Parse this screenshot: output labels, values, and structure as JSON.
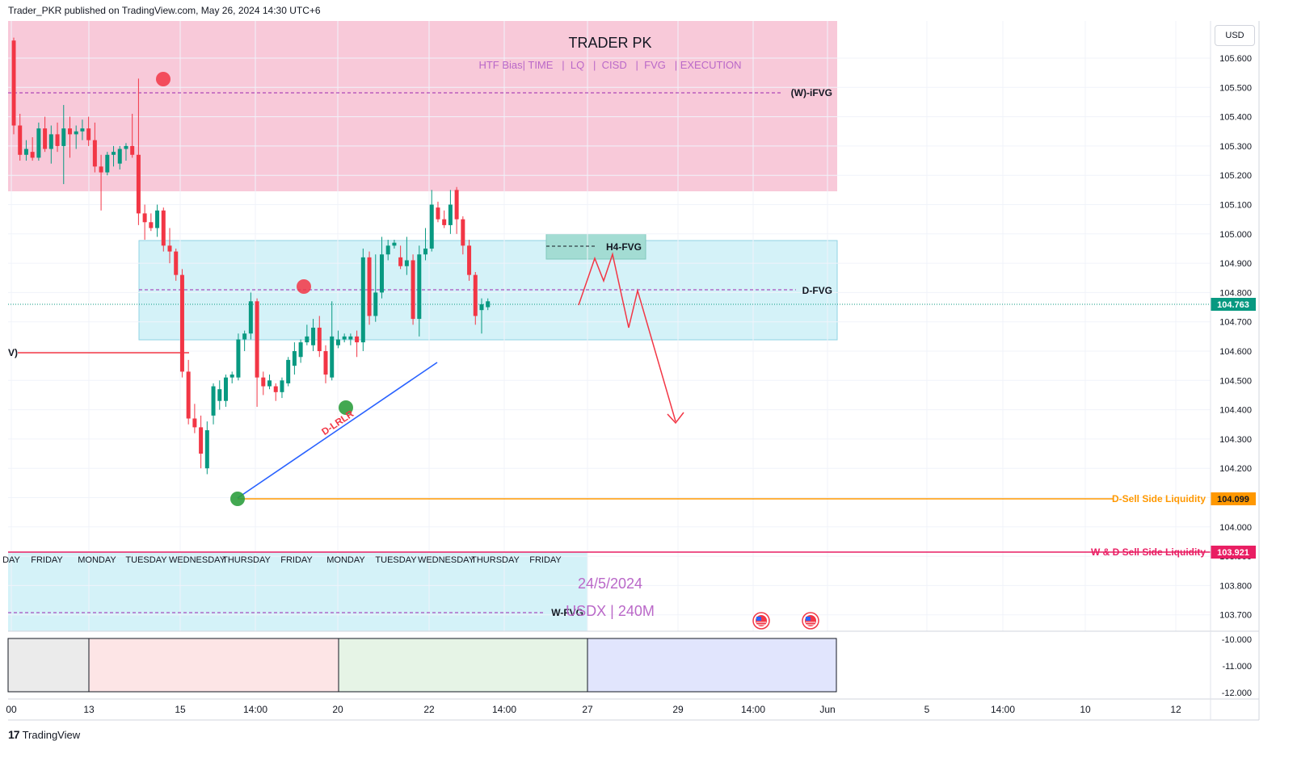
{
  "header": {
    "publisher": "Trader_PKR published on TradingView.com, May 26, 2024 14:30 UTC+6"
  },
  "footer": {
    "logo": "17",
    "brand": "TradingView"
  },
  "toolbar": {
    "currency": "USD"
  },
  "colors": {
    "up": "#089981",
    "down": "#f23645",
    "wick": "#131722",
    "pink_zone": "#f8c5d6",
    "cyan_zone": "#d2f1f7",
    "h4_zone": "#9ed9d0",
    "orange_line": "#ff9800",
    "magenta_line": "#e91e63",
    "blue_line": "#2962ff",
    "red_path": "#f23645"
  },
  "annotations": {
    "title": "TRADER PK",
    "subtitle": "HTF Bias| TIME   |  LQ   |  CISD   |  FVG   | EXECUTION",
    "w_ifvg": "(W)-iFVG",
    "d_fvg": "D-FVG",
    "h4_fvg": "H4-FVG",
    "d_lrlr": "D-LRLR",
    "w_fvg": "W-FVG",
    "left_cut": "V)",
    "date": "24/5/2024",
    "symbol": "USDX | 240M",
    "d_ssl": "D-Sell Side Liquidity",
    "wd_ssl": "W & D Sell Side Liquidity"
  },
  "days_strip": [
    "DAY",
    "FRIDAY",
    "MONDAY",
    "TUESDAY",
    "WEDNESDAY",
    "THURSDAY",
    "FRIDAY",
    "MONDAY",
    "TUESDAY",
    "WEDNESDAY",
    "THURSDAY",
    "FRIDAY"
  ],
  "chart_data": {
    "type": "candlestick",
    "symbol": "USDX",
    "timeframe": "240M",
    "y_ticks": [
      "105.600",
      "105.500",
      "105.400",
      "105.300",
      "105.200",
      "105.100",
      "105.000",
      "104.900",
      "104.800",
      "104.700",
      "104.600",
      "104.500",
      "104.400",
      "104.300",
      "104.200",
      "104.100",
      "104.000",
      "103.900",
      "103.800",
      "103.700"
    ],
    "oscillator_ticks": [
      "-10.000",
      "-11.000",
      "-12.000"
    ],
    "x_ticks": [
      "00",
      "13",
      "15",
      "14:00",
      "20",
      "22",
      "14:00",
      "27",
      "29",
      "14:00",
      "Jun",
      "5",
      "14:00",
      "10",
      "12"
    ],
    "ylim": [
      103.63,
      105.67
    ],
    "price_labels": {
      "current": "104.763",
      "d_ssl": "104.099",
      "wd_ssl": "103.921"
    },
    "levels": {
      "w_ifvg": 105.48,
      "d_fvg": 104.81,
      "d_ssl": 104.099,
      "wd_ssl": 103.921,
      "current": 104.763,
      "left_red": 104.6
    },
    "candles": [
      {
        "o": 105.66,
        "h": 105.67,
        "l": 105.34,
        "c": 105.37
      },
      {
        "o": 105.37,
        "h": 105.41,
        "l": 105.25,
        "c": 105.27
      },
      {
        "o": 105.27,
        "h": 105.32,
        "l": 105.25,
        "c": 105.29
      },
      {
        "o": 105.28,
        "h": 105.33,
        "l": 105.25,
        "c": 105.26
      },
      {
        "o": 105.26,
        "h": 105.38,
        "l": 105.25,
        "c": 105.36
      },
      {
        "o": 105.36,
        "h": 105.4,
        "l": 105.28,
        "c": 105.29
      },
      {
        "o": 105.29,
        "h": 105.37,
        "l": 105.24,
        "c": 105.34
      },
      {
        "o": 105.34,
        "h": 105.38,
        "l": 105.28,
        "c": 105.3
      },
      {
        "o": 105.3,
        "h": 105.44,
        "l": 105.17,
        "c": 105.36
      },
      {
        "o": 105.36,
        "h": 105.4,
        "l": 105.26,
        "c": 105.34
      },
      {
        "o": 105.34,
        "h": 105.37,
        "l": 105.29,
        "c": 105.35
      },
      {
        "o": 105.35,
        "h": 105.39,
        "l": 105.32,
        "c": 105.36
      },
      {
        "o": 105.36,
        "h": 105.4,
        "l": 105.3,
        "c": 105.32
      },
      {
        "o": 105.32,
        "h": 105.38,
        "l": 105.21,
        "c": 105.23
      },
      {
        "o": 105.23,
        "h": 105.27,
        "l": 105.08,
        "c": 105.21
      },
      {
        "o": 105.21,
        "h": 105.28,
        "l": 105.2,
        "c": 105.27
      },
      {
        "o": 105.27,
        "h": 105.3,
        "l": 105.23,
        "c": 105.28
      },
      {
        "o": 105.24,
        "h": 105.3,
        "l": 105.22,
        "c": 105.29
      },
      {
        "o": 105.29,
        "h": 105.31,
        "l": 105.25,
        "c": 105.3
      },
      {
        "o": 105.3,
        "h": 105.41,
        "l": 105.26,
        "c": 105.27
      },
      {
        "o": 105.27,
        "h": 105.53,
        "l": 105.03,
        "c": 105.07
      },
      {
        "o": 105.07,
        "h": 105.1,
        "l": 104.98,
        "c": 105.04
      },
      {
        "o": 105.04,
        "h": 105.07,
        "l": 105.01,
        "c": 105.02
      },
      {
        "o": 105.02,
        "h": 105.1,
        "l": 104.99,
        "c": 105.08
      },
      {
        "o": 105.08,
        "h": 105.09,
        "l": 104.94,
        "c": 104.96
      },
      {
        "o": 104.96,
        "h": 105.02,
        "l": 104.9,
        "c": 104.94
      },
      {
        "o": 104.94,
        "h": 104.95,
        "l": 104.84,
        "c": 104.86
      },
      {
        "o": 104.86,
        "h": 104.88,
        "l": 104.51,
        "c": 104.53
      },
      {
        "o": 104.53,
        "h": 104.57,
        "l": 104.35,
        "c": 104.37
      },
      {
        "o": 104.37,
        "h": 104.42,
        "l": 104.32,
        "c": 104.34
      },
      {
        "o": 104.34,
        "h": 104.38,
        "l": 104.2,
        "c": 104.25
      },
      {
        "o": 104.2,
        "h": 104.36,
        "l": 104.18,
        "c": 104.33
      },
      {
        "o": 104.38,
        "h": 104.49,
        "l": 104.35,
        "c": 104.48
      },
      {
        "o": 104.43,
        "h": 104.5,
        "l": 104.4,
        "c": 104.47
      },
      {
        "o": 104.43,
        "h": 104.52,
        "l": 104.41,
        "c": 104.51
      },
      {
        "o": 104.51,
        "h": 104.53,
        "l": 104.49,
        "c": 104.52
      },
      {
        "o": 104.51,
        "h": 104.66,
        "l": 104.5,
        "c": 104.64
      },
      {
        "o": 104.64,
        "h": 104.67,
        "l": 104.6,
        "c": 104.66
      },
      {
        "o": 104.66,
        "h": 104.8,
        "l": 104.64,
        "c": 104.77
      },
      {
        "o": 104.77,
        "h": 104.78,
        "l": 104.41,
        "c": 104.51
      },
      {
        "o": 104.51,
        "h": 104.53,
        "l": 104.45,
        "c": 104.48
      },
      {
        "o": 104.48,
        "h": 104.52,
        "l": 104.47,
        "c": 104.5
      },
      {
        "o": 104.48,
        "h": 104.49,
        "l": 104.43,
        "c": 104.46
      },
      {
        "o": 104.46,
        "h": 104.51,
        "l": 104.44,
        "c": 104.5
      },
      {
        "o": 104.49,
        "h": 104.58,
        "l": 104.48,
        "c": 104.57
      },
      {
        "o": 104.55,
        "h": 104.63,
        "l": 104.52,
        "c": 104.6
      },
      {
        "o": 104.58,
        "h": 104.64,
        "l": 104.56,
        "c": 104.63
      },
      {
        "o": 104.63,
        "h": 104.69,
        "l": 104.62,
        "c": 104.65
      },
      {
        "o": 104.62,
        "h": 104.71,
        "l": 104.6,
        "c": 104.68
      },
      {
        "o": 104.68,
        "h": 104.72,
        "l": 104.58,
        "c": 104.6
      },
      {
        "o": 104.6,
        "h": 104.62,
        "l": 104.49,
        "c": 104.52
      },
      {
        "o": 104.51,
        "h": 104.77,
        "l": 104.5,
        "c": 104.65
      },
      {
        "o": 104.62,
        "h": 104.67,
        "l": 104.61,
        "c": 104.64
      },
      {
        "o": 104.64,
        "h": 104.66,
        "l": 104.63,
        "c": 104.65
      },
      {
        "o": 104.64,
        "h": 104.66,
        "l": 104.62,
        "c": 104.65
      },
      {
        "o": 104.65,
        "h": 104.67,
        "l": 104.58,
        "c": 104.63
      },
      {
        "o": 104.63,
        "h": 104.95,
        "l": 104.6,
        "c": 104.92
      },
      {
        "o": 104.92,
        "h": 104.94,
        "l": 104.69,
        "c": 104.72
      },
      {
        "o": 104.72,
        "h": 104.93,
        "l": 104.7,
        "c": 104.8
      },
      {
        "o": 104.8,
        "h": 104.99,
        "l": 104.78,
        "c": 104.93
      },
      {
        "o": 104.93,
        "h": 104.98,
        "l": 104.91,
        "c": 104.96
      },
      {
        "o": 104.96,
        "h": 104.98,
        "l": 104.95,
        "c": 104.97
      },
      {
        "o": 104.92,
        "h": 104.96,
        "l": 104.88,
        "c": 104.89
      },
      {
        "o": 104.89,
        "h": 104.99,
        "l": 104.86,
        "c": 104.91
      },
      {
        "o": 104.91,
        "h": 104.93,
        "l": 104.69,
        "c": 104.71
      },
      {
        "o": 104.71,
        "h": 104.96,
        "l": 104.65,
        "c": 104.93
      },
      {
        "o": 104.93,
        "h": 105.02,
        "l": 104.91,
        "c": 104.95
      },
      {
        "o": 104.95,
        "h": 105.15,
        "l": 104.94,
        "c": 105.1
      },
      {
        "o": 105.09,
        "h": 105.11,
        "l": 105.04,
        "c": 105.05
      },
      {
        "o": 105.05,
        "h": 105.08,
        "l": 105.02,
        "c": 105.03
      },
      {
        "o": 105.03,
        "h": 105.15,
        "l": 105.0,
        "c": 105.1
      },
      {
        "o": 105.15,
        "h": 105.16,
        "l": 105.0,
        "c": 105.05
      },
      {
        "o": 105.05,
        "h": 105.06,
        "l": 104.93,
        "c": 104.96
      },
      {
        "o": 104.96,
        "h": 104.98,
        "l": 104.84,
        "c": 104.86
      },
      {
        "o": 104.86,
        "h": 104.87,
        "l": 104.69,
        "c": 104.72
      },
      {
        "o": 104.74,
        "h": 104.78,
        "l": 104.66,
        "c": 104.76
      },
      {
        "o": 104.75,
        "h": 104.78,
        "l": 104.74,
        "c": 104.77
      }
    ]
  }
}
